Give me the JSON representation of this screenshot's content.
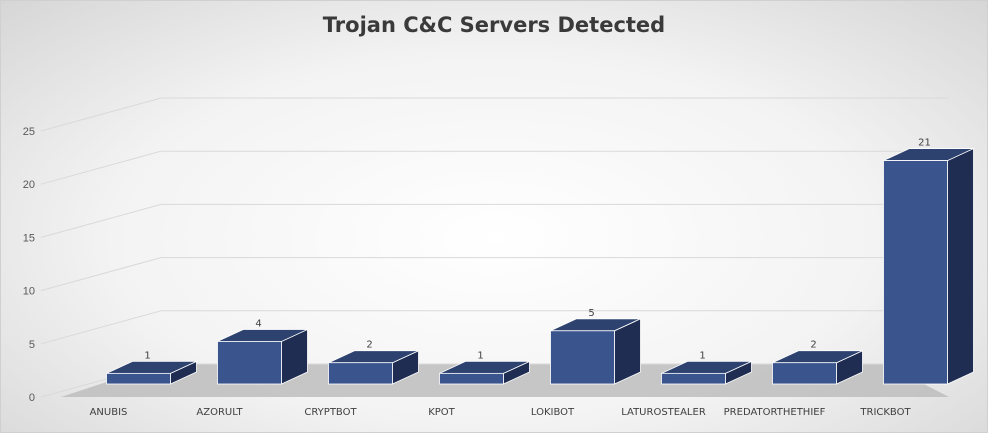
{
  "chart_data": {
    "type": "bar",
    "title": "Trojan C&C Servers Detected",
    "categories": [
      "ANUBIS",
      "AZORULT",
      "CRYPTBOT",
      "KPOT",
      "LOKIBOT",
      "LATUROSTEALER",
      "PREDATORTHETHIEF",
      "TRICKBOT"
    ],
    "values": [
      1,
      4,
      2,
      1,
      5,
      1,
      2,
      21
    ],
    "data_labels": [
      "1",
      "4",
      "2",
      "1",
      "5",
      "1",
      "2",
      "21"
    ],
    "yticks": [
      "0",
      "5",
      "10",
      "15",
      "20",
      "25"
    ],
    "ylim": [
      0,
      25
    ],
    "grid": true,
    "style": "3d-column",
    "colors": {
      "bar_front": "#3a558e",
      "bar_top": "#2e4270",
      "bar_side": "#1f2d52",
      "floor": "#bdbdbd"
    }
  }
}
